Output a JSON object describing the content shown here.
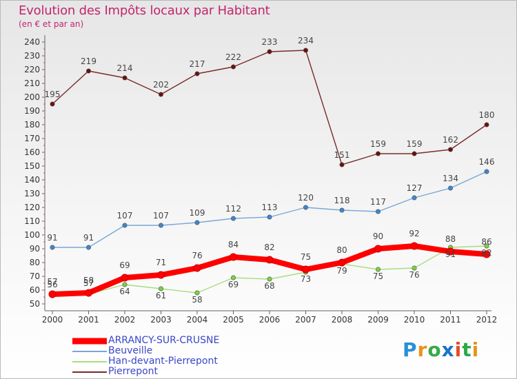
{
  "header": {
    "title": "Evolution des Impôts locaux par Habitant",
    "subtitle": "(en € et par an)"
  },
  "colors": {
    "title": "#c2246d",
    "axis": "#606060",
    "legend_text": "#3a47c8"
  },
  "logo": {
    "text": "Proxiti"
  },
  "chart_data": {
    "type": "line",
    "title": "Evolution des Impôts locaux par Habitant",
    "subtitle": "(en € et par an)",
    "xlabel": "",
    "ylabel": "",
    "categories": [
      "2000",
      "2001",
      "2002",
      "2003",
      "2004",
      "2005",
      "2006",
      "2007",
      "2008",
      "2009",
      "2010",
      "2011",
      "2012"
    ],
    "ylim": [
      50,
      240
    ],
    "yticks": [
      50,
      60,
      70,
      80,
      90,
      100,
      110,
      120,
      130,
      140,
      150,
      160,
      170,
      180,
      190,
      200,
      210,
      220,
      230,
      240
    ],
    "grid": false,
    "legend_position": "bottom-left",
    "series": [
      {
        "name": "ARRANCY-SUR-CRUSNE",
        "values": [
          57,
          58,
          69,
          71,
          76,
          84,
          82,
          75,
          80,
          90,
          92,
          88,
          86
        ],
        "labels": [
          "57",
          "58",
          "69",
          "71",
          "76",
          "84",
          "82",
          "75",
          "80",
          "90",
          "92",
          "88",
          "86"
        ],
        "color": "#ff0000",
        "marker_color": "#ff0000",
        "bold": true
      },
      {
        "name": "Beuveille",
        "values": [
          91,
          91,
          107,
          107,
          109,
          112,
          113,
          120,
          118,
          117,
          127,
          134,
          146
        ],
        "labels": [
          "91",
          "91",
          "107",
          "107",
          "109",
          "112",
          "113",
          "120",
          "118",
          "117",
          "127",
          "134",
          "146"
        ],
        "color": "#7aa6d6",
        "marker_color": "#3f86d0",
        "bold": false
      },
      {
        "name": "Han-devant-Pierrepont",
        "values": [
          56,
          57,
          64,
          61,
          58,
          69,
          68,
          73,
          79,
          75,
          76,
          91,
          92
        ],
        "labels": [
          "56",
          "57",
          "64",
          "61",
          "58",
          "69",
          "68",
          "73",
          "79",
          "75",
          "76",
          "91",
          "92"
        ],
        "color": "#a8dc80",
        "marker_color": "#7cd23a",
        "bold": false
      },
      {
        "name": "Pierrepont",
        "values": [
          195,
          219,
          214,
          202,
          217,
          222,
          233,
          234,
          151,
          159,
          159,
          162,
          180
        ],
        "labels": [
          "195",
          "219",
          "214",
          "202",
          "217",
          "222",
          "233",
          "234",
          "151",
          "159",
          "159",
          "162",
          "180"
        ],
        "color": "#7a2a2a",
        "marker_color": "#6b1010",
        "bold": false
      }
    ]
  }
}
